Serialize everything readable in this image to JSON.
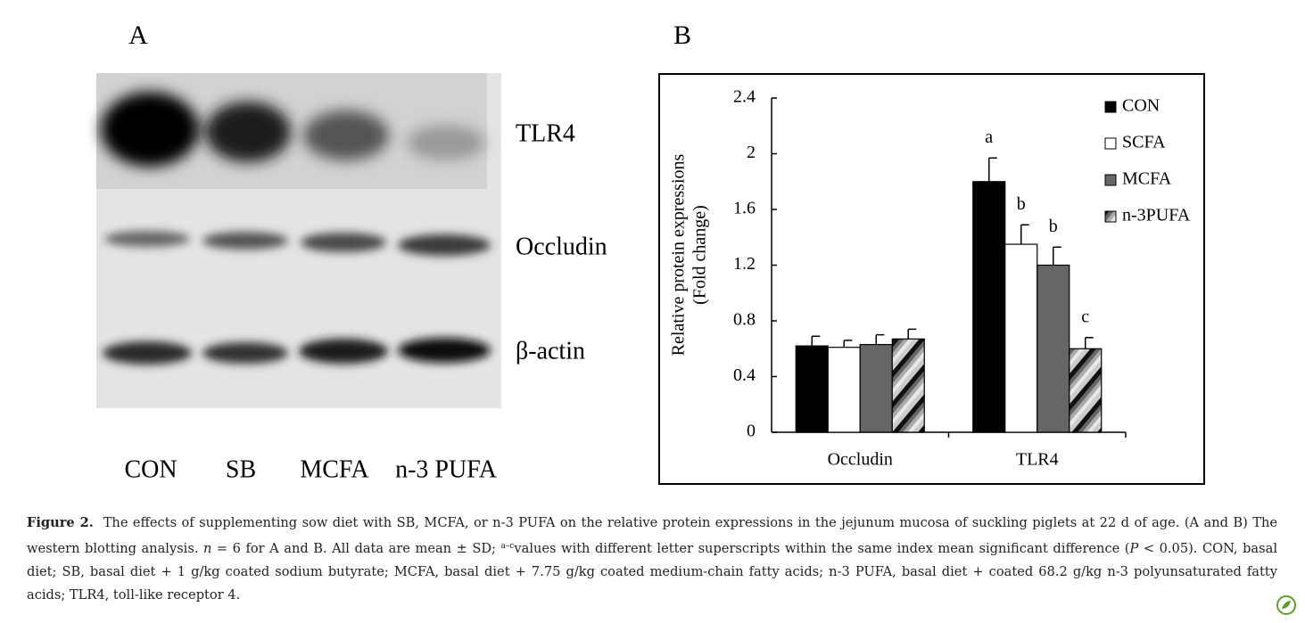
{
  "panel_a": {
    "label": "A",
    "bands": [
      "TLR4",
      "Occludin",
      "β-actin"
    ],
    "lanes": [
      "CON",
      "SB",
      "MCFA",
      "n-3 PUFA"
    ]
  },
  "chart_data": {
    "type": "bar",
    "panel_label": "B",
    "y_label": [
      "Relative protein expressions",
      "(Fold change)"
    ],
    "categories": [
      "Occludin",
      "TLR4"
    ],
    "series": [
      {
        "name": "CON",
        "color": "#000000",
        "values": [
          0.62,
          1.8
        ],
        "errors": [
          0.07,
          0.17
        ],
        "letters": [
          null,
          "a"
        ]
      },
      {
        "name": "SCFA",
        "color": "#ffffff",
        "values": [
          0.61,
          1.35
        ],
        "errors": [
          0.05,
          0.14
        ],
        "letters": [
          null,
          "b"
        ]
      },
      {
        "name": "MCFA",
        "color": "#666666",
        "values": [
          0.63,
          1.2
        ],
        "errors": [
          0.07,
          0.13
        ],
        "letters": [
          null,
          "b"
        ]
      },
      {
        "name": "n-3PUFA",
        "color": "#888888",
        "hatch": true,
        "values": [
          0.67,
          0.6
        ],
        "errors": [
          0.07,
          0.08
        ],
        "letters": [
          null,
          "c"
        ]
      }
    ],
    "ylim": [
      0,
      2.4
    ],
    "yticks": [
      0,
      0.4,
      0.8,
      1.2,
      1.6,
      2,
      2.4
    ],
    "legend": "top-right"
  },
  "caption": {
    "label": "Figure 2.",
    "segments": [
      "The effects of supplementing sow diet with SB, MCFA, or n-3 PUFA on the relative protein expressions in the jejunum mucosa of suckling piglets at 22 d of age. (A and B) The western blotting analysis. ",
      "n",
      " = 6 for A and B. All data are mean ± SD; ",
      "a–c",
      "values with different letter superscripts within the same index mean significant difference (",
      "P",
      " < 0.05). CON, basal diet; SB, basal diet + 1 g/kg coated sodium butyrate; MCFA, basal diet + 7.75 g/kg coated medium-chain fatty acids; n-3 PUFA, basal diet + coated 68.2 g/kg n-3 polyunsaturated fatty acids; TLR4, toll-like receptor 4."
    ]
  }
}
